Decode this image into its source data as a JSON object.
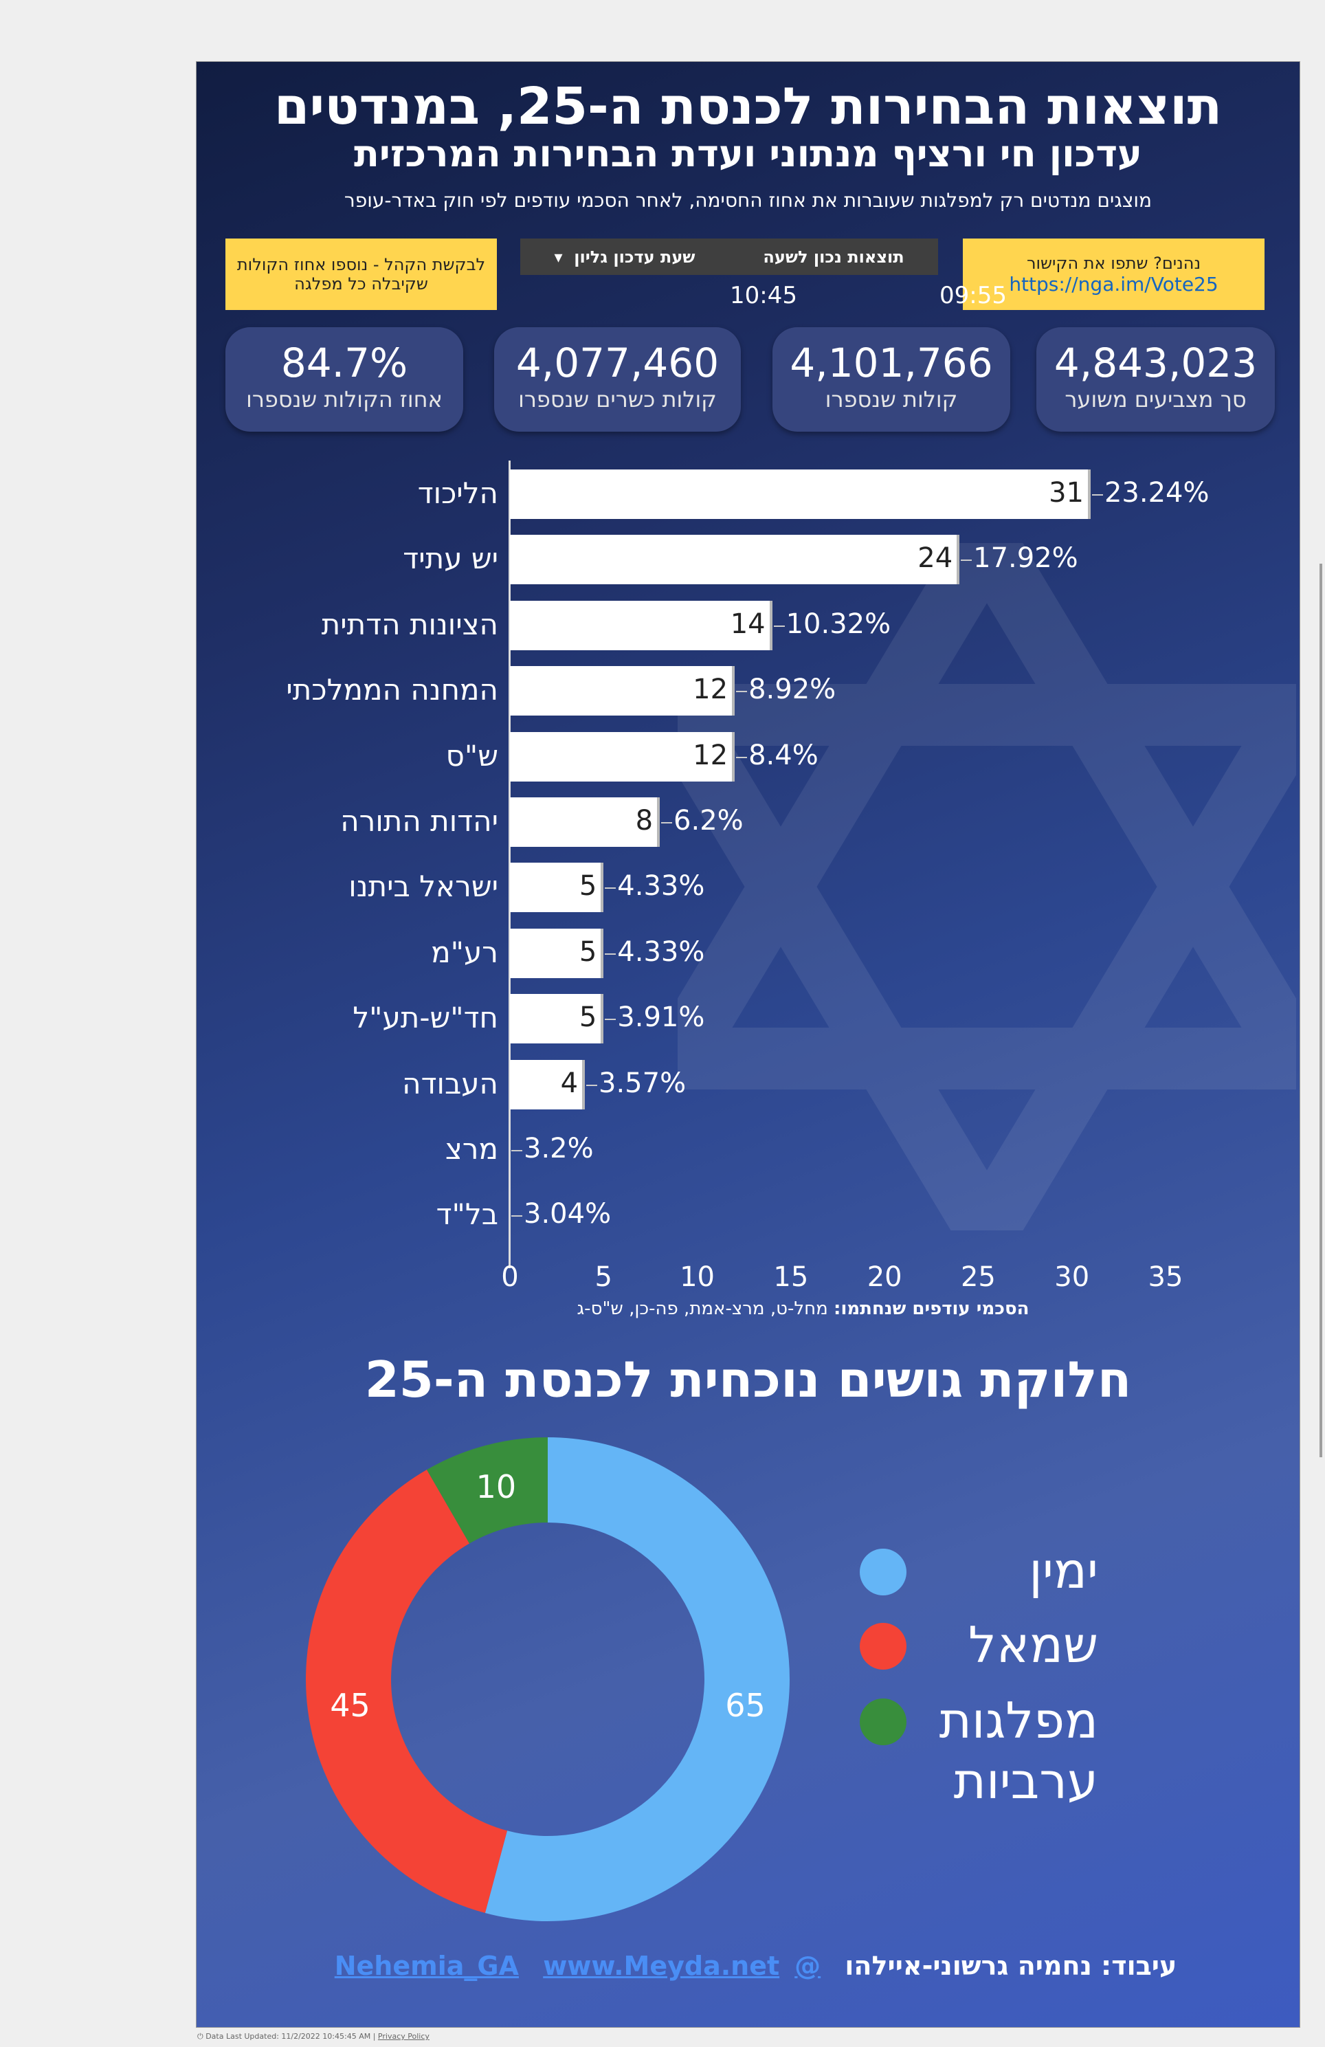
{
  "header": {
    "title": "תוצאות הבחירות לכנסת ה-25, במנדטים",
    "subtitle": "עדכון חי ורציף מנתוני ועדת הבחירות המרכזית",
    "note": "מוצגים מנדטים רק למפלגות שעוברות את אחוז החסימה, לאחר הסכמי עודפים לפי חוק באדר-עופר"
  },
  "info": {
    "left_note": "לבקשת הקהל - נוספו אחוז הקולות שקיבלה כל מפלגה",
    "share_text": "נהנים? שתפו את הקישור",
    "share_link": "https://nga.im/Vote25",
    "col_results_label": "תוצאות נכון לשעה",
    "col_update_label": "שעת עדכון גליון",
    "dropdown_icon": "caret-down-icon",
    "results_time": "09:55",
    "update_time": "10:45"
  },
  "stats": [
    {
      "value": "4,843,023",
      "label": "סך מצביעים משוער"
    },
    {
      "value": "4,101,766",
      "label": "קולות שנספרו"
    },
    {
      "value": "4,077,460",
      "label": "קולות כשרים שנספרו"
    },
    {
      "value": "84.7%",
      "label": "אחוז הקולות שנספרו"
    }
  ],
  "chart_data": [
    {
      "type": "bar",
      "orientation": "horizontal",
      "categories": [
        "הליכוד",
        "יש עתיד",
        "הציונות הדתית",
        "המחנה הממלכתי",
        "ש\"ס",
        "יהדות התורה",
        "ישראל ביתנו",
        "רע\"מ",
        "חד\"ש-תע\"ל",
        "העבודה",
        "מרצ",
        "בל\"ד"
      ],
      "values": [
        31,
        24,
        14,
        12,
        12,
        8,
        5,
        5,
        5,
        4,
        0,
        0
      ],
      "percent_labels": [
        "23.24%",
        "17.92%",
        "10.32%",
        "8.92%",
        "8.4%",
        "6.2%",
        "4.33%",
        "4.33%",
        "3.91%",
        "3.57%",
        "3.2%",
        "3.04%"
      ],
      "xlim": [
        0,
        35
      ],
      "xticks": [
        "0",
        "5",
        "10",
        "15",
        "20",
        "25",
        "30",
        "35"
      ],
      "bar_color": "#ffffff",
      "footnote_bold": "הסכמי עודפים שנחתמו:",
      "footnote": "מחל-ט, מרצ-אמת, פה-כן, ש\"ס-ג"
    },
    {
      "type": "pie",
      "donut": true,
      "title": "חלוקת גושים נוכחית לכנסת ה-25",
      "labels": [
        "ימין",
        "שמאל",
        "מפלגות ערביות"
      ],
      "values": [
        65,
        45,
        10
      ],
      "colors": [
        "#64b5f6",
        "#f44336",
        "#388e3c"
      ],
      "legend": "right"
    }
  ],
  "footer": {
    "credit": "עיבוד: נחמיה גרשוני-איילהו",
    "twitter": "@Nehemia_GA",
    "site": "www.Meyda.net"
  },
  "status": {
    "updated": "Data Last Updated: 11/2/2022 10:45:45 AM",
    "privacy": "Privacy Policy"
  }
}
